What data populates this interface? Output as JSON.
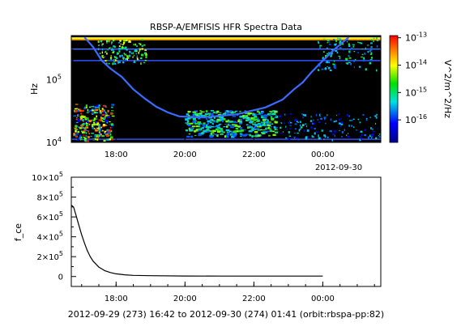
{
  "title": "RBSP-A/EMFISIS  HFR Spectra Data",
  "footer": "2012-09-29 (273) 16:42 to 2012-09-30 (274) 01:41 (orbit:rbspa-pp:82)",
  "chart_data": [
    {
      "type": "heatmap",
      "title": "RBSP-A/EMFISIS  HFR Spectra Data",
      "ylabel": "Hz",
      "yscale": "log",
      "ylim": [
        10000,
        500000
      ],
      "xlim": [
        "2012-09-29T16:42",
        "2012-09-30T01:41"
      ],
      "x_tick_labels": [
        "18:00",
        "20:00",
        "22:00",
        "00:00"
      ],
      "x_secondary_label": "2012-09-30",
      "y_tick_labels": [
        {
          "base": "10",
          "exp": "4",
          "value": 10000
        },
        {
          "base": "10",
          "exp": "5",
          "value": 100000
        }
      ],
      "colorbar": {
        "label": "V^2/m^2/Hz",
        "scale": "log",
        "range": [
          1.5e-17,
          1.2e-13
        ],
        "tick_labels": [
          {
            "base": "10",
            "exp": "-13",
            "value": 1e-13
          },
          {
            "base": "10",
            "exp": "-14",
            "value": 1e-14
          },
          {
            "base": "10",
            "exp": "-15",
            "value": 1e-15
          },
          {
            "base": "10",
            "exp": "-16",
            "value": 1e-16
          }
        ]
      },
      "background_color": "#000000",
      "interference_lines_hz": [
        455000,
        435000,
        305000,
        200000,
        11200
      ],
      "boundary_points": [
        {
          "t": "17:05",
          "hz": 470000
        },
        {
          "t": "17:20",
          "hz": 330000
        },
        {
          "t": "17:35",
          "hz": 200000
        },
        {
          "t": "17:50",
          "hz": 150000
        },
        {
          "t": "18:10",
          "hz": 110000
        },
        {
          "t": "18:30",
          "hz": 70000
        },
        {
          "t": "18:50",
          "hz": 50000
        },
        {
          "t": "19:10",
          "hz": 37000
        },
        {
          "t": "19:30",
          "hz": 30000
        },
        {
          "t": "19:50",
          "hz": 26000
        },
        {
          "t": "20:30",
          "hz": 25000
        },
        {
          "t": "21:30",
          "hz": 28000
        },
        {
          "t": "22:20",
          "hz": 36000
        },
        {
          "t": "22:50",
          "hz": 48000
        },
        {
          "t": "23:10",
          "hz": 70000
        },
        {
          "t": "23:25",
          "hz": 90000
        },
        {
          "t": "23:40",
          "hz": 130000
        },
        {
          "t": "23:55",
          "hz": 180000
        },
        {
          "t": "00:20",
          "hz": 300000
        },
        {
          "t": "00:45",
          "hz": 470000
        }
      ]
    },
    {
      "type": "line",
      "ylabel": "f_ce",
      "ylim": [
        -100000,
        1000000
      ],
      "xlim": [
        "2012-09-29T16:42",
        "2012-09-30T01:41"
      ],
      "x_tick_labels": [
        "18:00",
        "20:00",
        "22:00",
        "00:00"
      ],
      "y_tick_labels": [
        {
          "base": "0",
          "exp": "",
          "value": 0
        },
        {
          "base": "2×10",
          "exp": "5",
          "value": 200000
        },
        {
          "base": "4×10",
          "exp": "5",
          "value": 400000
        },
        {
          "base": "6×10",
          "exp": "5",
          "value": 600000
        },
        {
          "base": "8×10",
          "exp": "5",
          "value": 800000
        },
        {
          "base": "10×10",
          "exp": "5",
          "value": 1000000
        }
      ],
      "line_color": "#000000",
      "series": [
        {
          "x": [
            "16:42",
            "16:46",
            "16:50",
            "16:55",
            "17:00",
            "17:05",
            "17:10",
            "17:15",
            "17:20",
            "17:30",
            "17:40",
            "17:50",
            "18:00",
            "18:15",
            "18:30",
            "19:00",
            "20:00",
            "21:00",
            "22:00",
            "23:00",
            "00:00"
          ],
          "y": [
            720000,
            700000,
            620000,
            520000,
            420000,
            335000,
            260000,
            200000,
            155000,
            95000,
            60000,
            40000,
            27000,
            17000,
            12000,
            8000,
            5000,
            4000,
            4000,
            4000,
            4500
          ]
        }
      ]
    }
  ]
}
